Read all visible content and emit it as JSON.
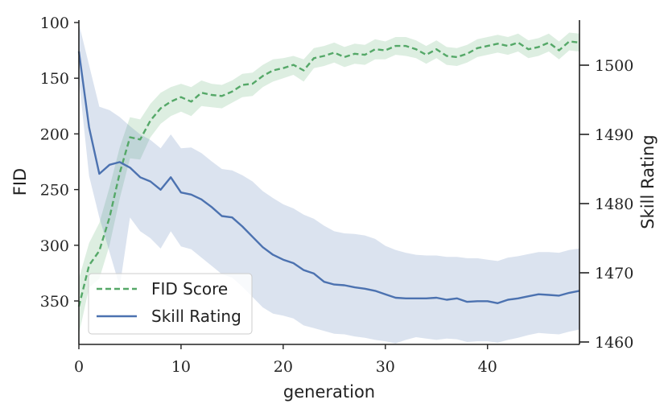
{
  "chart_data": {
    "type": "line",
    "title": "",
    "xlabel": "generation",
    "ylabel_left": "FID",
    "ylabel_right": "Skill Rating",
    "xlim": [
      0,
      49
    ],
    "ylim_left": [
      100,
      375
    ],
    "ylim_left_inverted": true,
    "ylim_right": [
      1460,
      1505
    ],
    "xticks": [
      "0",
      "10",
      "20",
      "30",
      "40"
    ],
    "xtick_values": [
      0,
      10,
      20,
      30,
      40
    ],
    "yticks_left": [
      "100",
      "150",
      "200",
      "250",
      "300",
      "350"
    ],
    "ytick_values_left": [
      100,
      150,
      200,
      250,
      300,
      350
    ],
    "yticks_right": [
      "1460",
      "1470",
      "1480",
      "1490",
      "1500"
    ],
    "ytick_values_right": [
      1460,
      1470,
      1480,
      1490,
      1500
    ],
    "legend_position": "bottom-left",
    "grid": false,
    "series": [
      {
        "name": "FID Score",
        "axis": "left",
        "style": "dashed",
        "color": "#55a868",
        "x": [
          0,
          1,
          2,
          3,
          4,
          5,
          6,
          7,
          8,
          9,
          10,
          11,
          12,
          13,
          14,
          15,
          16,
          17,
          18,
          19,
          20,
          21,
          22,
          23,
          24,
          25,
          26,
          27,
          28,
          29,
          30,
          31,
          32,
          33,
          34,
          35,
          36,
          37,
          38,
          39,
          40,
          41,
          42,
          43,
          44,
          45,
          46,
          47,
          48,
          49
        ],
        "values": [
          355,
          318,
          305,
          275,
          235,
          203,
          205,
          188,
          177,
          171,
          167,
          171,
          163,
          165,
          166,
          162,
          156,
          155,
          148,
          143,
          141,
          138,
          143,
          132,
          130,
          127,
          131,
          128,
          129,
          124,
          125,
          121,
          121,
          124,
          129,
          124,
          130,
          131,
          128,
          123,
          121,
          119,
          121,
          118,
          124,
          122,
          118,
          125,
          117,
          118
        ],
        "band_lower": [
          330,
          298,
          280,
          248,
          212,
          185,
          187,
          173,
          163,
          158,
          155,
          158,
          152,
          155,
          156,
          152,
          146,
          145,
          138,
          133,
          132,
          130,
          133,
          123,
          121,
          118,
          122,
          119,
          120,
          115,
          117,
          113,
          113,
          116,
          121,
          116,
          122,
          123,
          120,
          115,
          113,
          111,
          113,
          110,
          116,
          114,
          110,
          117,
          109,
          110
        ],
        "band_upper": [
          380,
          338,
          330,
          300,
          258,
          222,
          223,
          203,
          191,
          184,
          180,
          184,
          175,
          176,
          177,
          172,
          167,
          166,
          158,
          153,
          150,
          147,
          153,
          141,
          139,
          136,
          140,
          137,
          138,
          133,
          133,
          129,
          130,
          132,
          137,
          132,
          138,
          139,
          136,
          131,
          129,
          127,
          129,
          126,
          132,
          130,
          126,
          133,
          125,
          126
        ]
      },
      {
        "name": "Skill Rating",
        "axis": "right",
        "style": "solid",
        "color": "#4c72b0",
        "x": [
          0,
          1,
          2,
          3,
          4,
          5,
          6,
          7,
          8,
          9,
          10,
          11,
          12,
          13,
          14,
          15,
          16,
          17,
          18,
          19,
          20,
          21,
          22,
          23,
          24,
          25,
          26,
          27,
          28,
          29,
          30,
          31,
          32,
          33,
          34,
          35,
          36,
          37,
          38,
          39,
          40,
          41,
          42,
          43,
          44,
          45,
          46,
          47,
          48,
          49
        ],
        "values": [
          1502,
          1491,
          1484.3,
          1485.6,
          1486,
          1485.2,
          1483.8,
          1483.2,
          1482,
          1483.8,
          1481.6,
          1481.3,
          1480.6,
          1479.5,
          1478.2,
          1478,
          1476.7,
          1475.2,
          1473.7,
          1472.6,
          1471.9,
          1471.4,
          1470.4,
          1469.9,
          1468.7,
          1468.3,
          1468.2,
          1467.9,
          1467.7,
          1467.4,
          1466.9,
          1466.4,
          1466.3,
          1466.3,
          1466.3,
          1466.4,
          1466.1,
          1466.3,
          1465.8,
          1465.9,
          1465.9,
          1465.6,
          1466.1,
          1466.3,
          1466.6,
          1466.9,
          1466.8,
          1466.7,
          1467.1,
          1467.4
        ],
        "band_lower": [
          1498,
          1484,
          1478,
          1473,
          1468,
          1478,
          1476,
          1475,
          1473.5,
          1476,
          1473.8,
          1473.4,
          1472.2,
          1471,
          1469.8,
          1469.3,
          1468,
          1466.5,
          1465,
          1464.1,
          1463.8,
          1463.4,
          1462.4,
          1462,
          1461.6,
          1461.2,
          1461.1,
          1460.8,
          1460.6,
          1460.3,
          1460.1,
          1459.8,
          1460.3,
          1460.7,
          1460.5,
          1460.3,
          1460.5,
          1460.4,
          1460,
          1460.1,
          1460.1,
          1459.9,
          1460.3,
          1460.6,
          1461,
          1461.3,
          1461.2,
          1461.1,
          1461.5,
          1461.8
        ],
        "band_upper": [
          1506,
          1500,
          1494,
          1493.5,
          1492.5,
          1491.2,
          1490,
          1489.2,
          1488,
          1490,
          1488,
          1488.1,
          1487.3,
          1486.1,
          1485,
          1484.8,
          1484.1,
          1483.2,
          1481.8,
          1480.8,
          1479.9,
          1479.3,
          1478.4,
          1477.8,
          1476.8,
          1476,
          1475.7,
          1475.6,
          1475.4,
          1474.9,
          1473.9,
          1473.3,
          1472.9,
          1472.6,
          1472.5,
          1472.5,
          1472.3,
          1472.3,
          1472.1,
          1472.1,
          1471.9,
          1471.7,
          1472.2,
          1472.4,
          1472.7,
          1473,
          1473,
          1472.9,
          1473.3,
          1473.5
        ]
      }
    ]
  }
}
